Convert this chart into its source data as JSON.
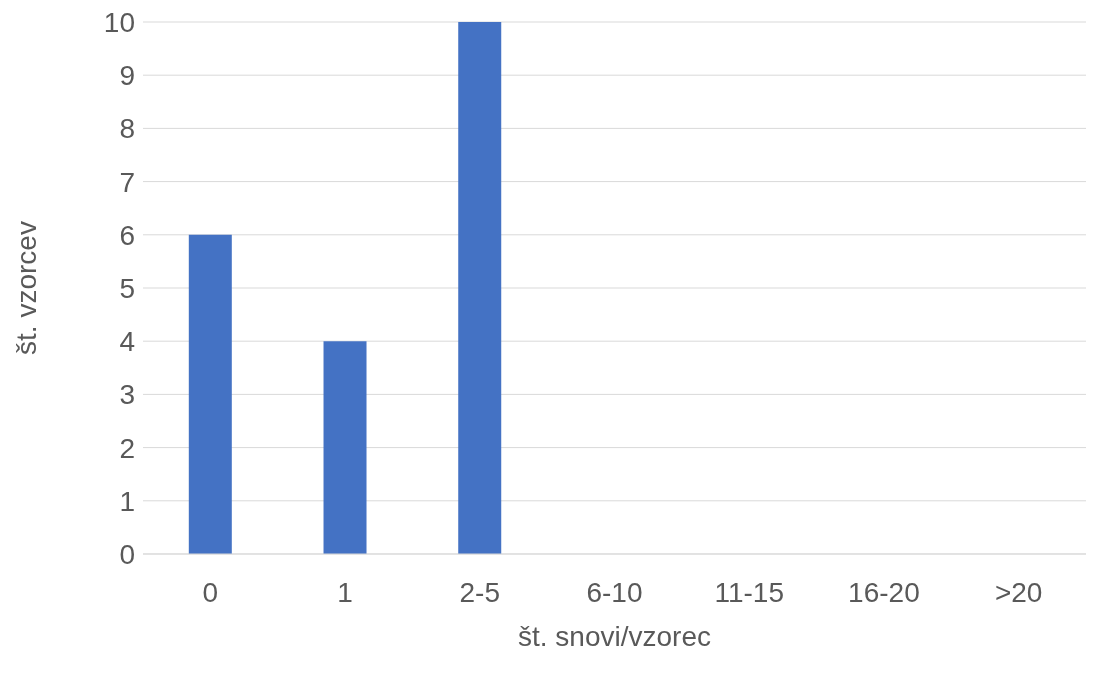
{
  "chart_data": {
    "type": "bar",
    "xlabel": "št. snovi/vzorec",
    "ylabel": "št. vzorcev",
    "categories": [
      "0",
      "1",
      "2-5",
      "6-10",
      "11-15",
      "16-20",
      ">20"
    ],
    "values": [
      6,
      4,
      10,
      0,
      0,
      0,
      0
    ],
    "color": "#4472c4",
    "ylim": [
      0,
      10
    ],
    "yticks": [
      0,
      1,
      2,
      3,
      4,
      5,
      6,
      7,
      8,
      9,
      10
    ],
    "grid": "y"
  }
}
